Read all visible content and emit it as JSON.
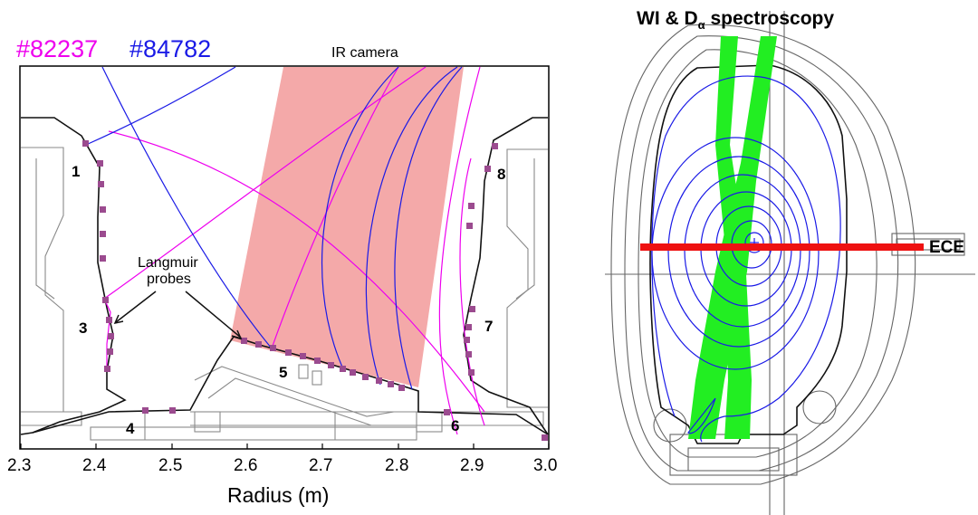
{
  "left_panel": {
    "shots": [
      {
        "label": "#82237",
        "color": "#ee00ee"
      },
      {
        "label": "#84782",
        "color": "#1a1ae6"
      }
    ],
    "ir_camera_label": "IR camera",
    "langmuir_label_line1": "Langmuir",
    "langmuir_label_line2": "probes",
    "tile_numbers": [
      "1",
      "3",
      "4",
      "5",
      "6",
      "7",
      "8"
    ],
    "x_axis": {
      "ticks": [
        "2.3",
        "2.4",
        "2.5",
        "2.6",
        "2.7",
        "2.8",
        "2.9",
        "3.0"
      ],
      "label": "Radius (m)",
      "range": [
        2.3,
        3.0
      ]
    },
    "ir_camera_color": "#f4a9a9",
    "probe_color": "#9b4b8f"
  },
  "right_panel": {
    "title_part1": "WI & D",
    "title_subscript": "α",
    "title_part2": " spectroscopy",
    "ece_label": "ECE",
    "spectroscopy_color": "#22ee22",
    "ece_color": "#ee1111",
    "flux_color": "#1a1ae6"
  }
}
